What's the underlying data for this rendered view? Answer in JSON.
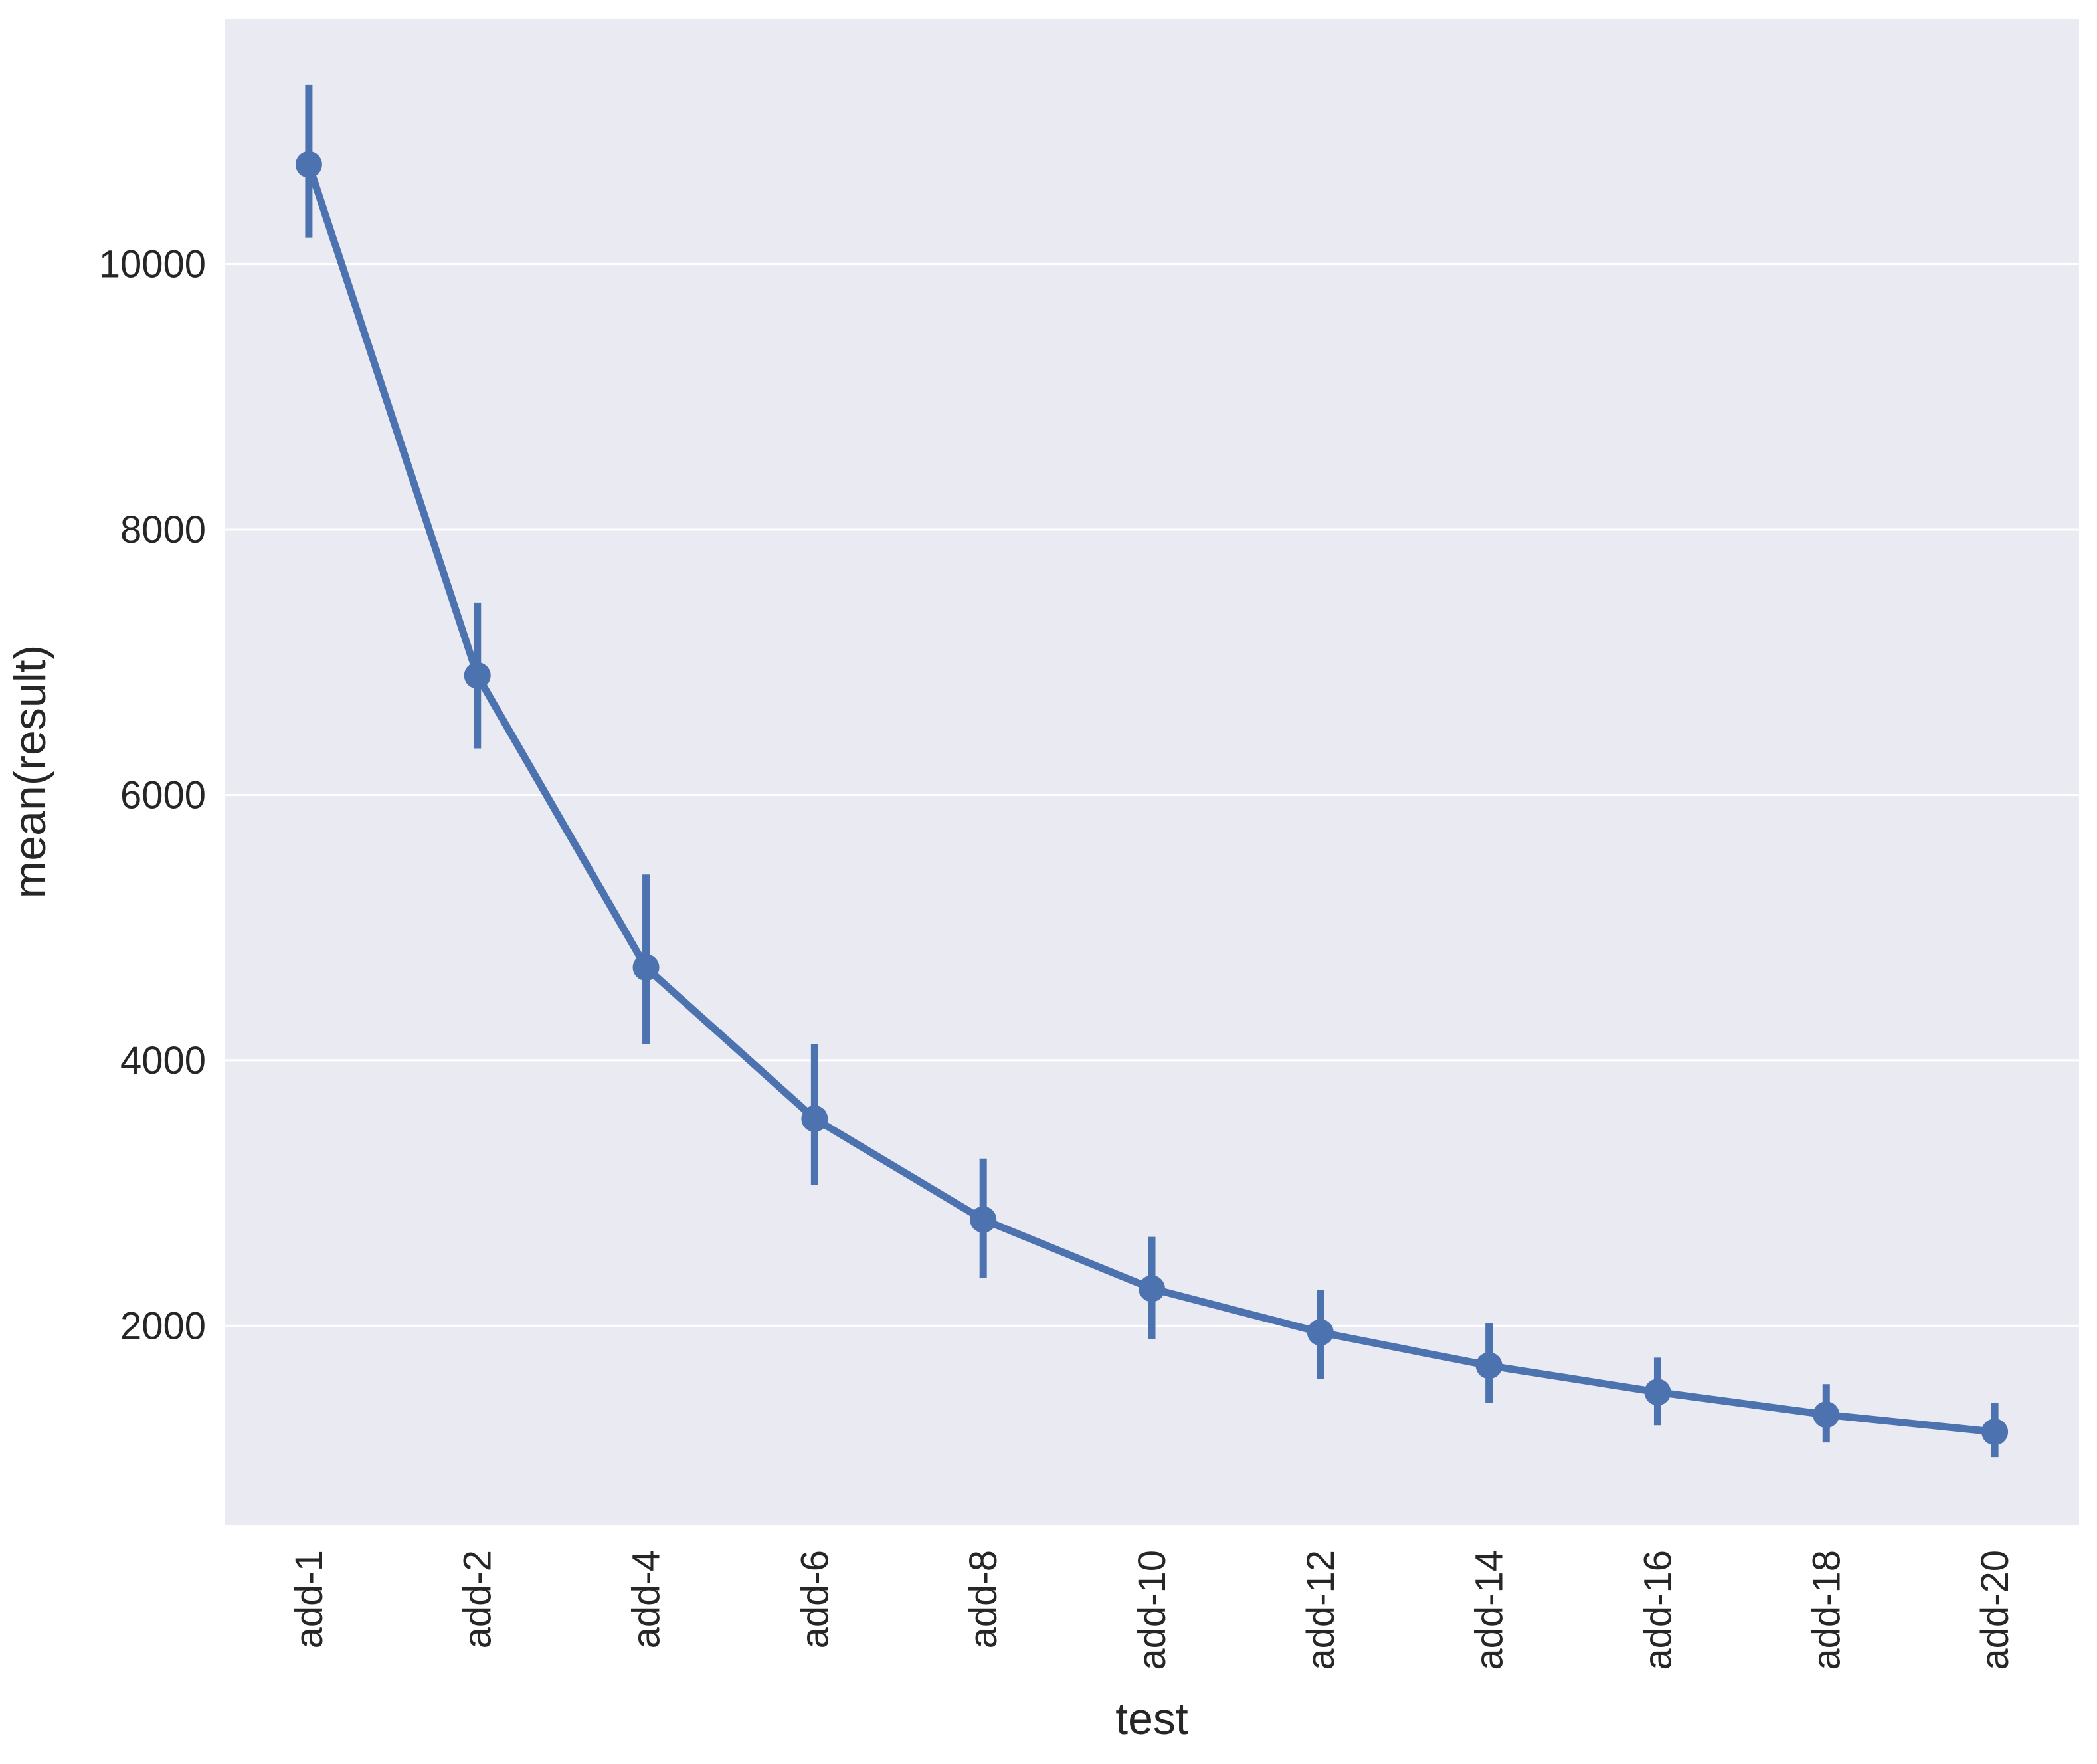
{
  "chart_data": {
    "type": "line",
    "title": "",
    "xlabel": "test",
    "ylabel": "mean(result)",
    "categories": [
      "add-1",
      "add-2",
      "add-4",
      "add-6",
      "add-8",
      "add-10",
      "add-12",
      "add-14",
      "add-16",
      "add-18",
      "add-20"
    ],
    "series": [
      {
        "values": [
          10750,
          6900,
          4700,
          3560,
          2800,
          2280,
          1950,
          1700,
          1500,
          1330,
          1200
        ],
        "error_low": [
          10200,
          6350,
          4120,
          3060,
          2360,
          1900,
          1600,
          1420,
          1250,
          1120,
          1010
        ],
        "error_high": [
          11350,
          7450,
          5400,
          4120,
          3260,
          2670,
          2270,
          2020,
          1760,
          1560,
          1420
        ],
        "color": "#4c72b0"
      }
    ],
    "yticks": [
      2000,
      4000,
      6000,
      8000,
      10000
    ],
    "ylim": [
      500,
      11850
    ],
    "grid": true,
    "legend": "none",
    "background": "#eaeaf2",
    "grid_color": "#ffffff"
  }
}
